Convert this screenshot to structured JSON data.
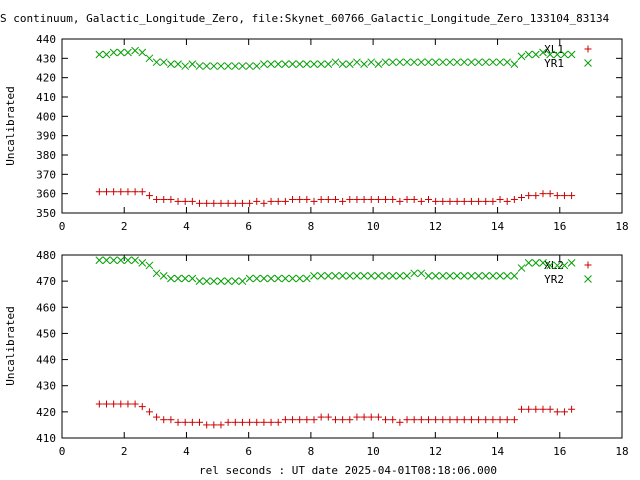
{
  "title": "S continuum, Galactic_Longitude_Zero, file:Skynet_60766_Galactic_Longitude_Zero_133104_83134",
  "chart_data": [
    {
      "type": "scatter",
      "xlim": [
        0,
        18
      ],
      "ylim": [
        350,
        440
      ],
      "xticks": [
        "0",
        "2",
        "4",
        "6",
        "8",
        "10",
        "12",
        "14",
        "16",
        "18"
      ],
      "yticks": [
        "350",
        "360",
        "370",
        "380",
        "390",
        "400",
        "410",
        "420",
        "430",
        "440"
      ],
      "ylabel": "Uncalibrated",
      "xlabel": "",
      "legend": "top-right",
      "series": [
        {
          "name": "XL1",
          "color": "#cc0000",
          "marker": "plus",
          "x": [
            1.2,
            1.43,
            1.66,
            1.89,
            2.12,
            2.35,
            2.58,
            2.81,
            3.04,
            3.27,
            3.5,
            3.73,
            3.96,
            4.19,
            4.42,
            4.65,
            4.88,
            5.11,
            5.34,
            5.57,
            5.8,
            6.03,
            6.26,
            6.49,
            6.72,
            6.95,
            7.18,
            7.41,
            7.64,
            7.87,
            8.1,
            8.33,
            8.56,
            8.79,
            9.02,
            9.25,
            9.48,
            9.71,
            9.94,
            10.17,
            10.4,
            10.63,
            10.86,
            11.09,
            11.32,
            11.55,
            11.78,
            12.01,
            12.24,
            12.47,
            12.7,
            12.93,
            13.16,
            13.39,
            13.62,
            13.85,
            14.08,
            14.31,
            14.54,
            14.77,
            15.0,
            15.23,
            15.46,
            15.69,
            15.92,
            16.15,
            16.38
          ],
          "y": [
            361,
            361,
            361,
            361,
            361,
            361,
            361,
            359,
            357,
            357,
            357,
            356,
            356,
            356,
            355,
            355,
            355,
            355,
            355,
            355,
            355,
            355,
            356,
            355,
            356,
            356,
            356,
            357,
            357,
            357,
            356,
            357,
            357,
            357,
            356,
            357,
            357,
            357,
            357,
            357,
            357,
            357,
            356,
            357,
            357,
            356,
            357,
            356,
            356,
            356,
            356,
            356,
            356,
            356,
            356,
            356,
            357,
            356,
            357,
            358,
            359,
            359,
            360,
            360,
            359,
            359,
            359
          ]
        },
        {
          "name": "YR1",
          "color": "#00a000",
          "marker": "cross",
          "x": [
            1.2,
            1.43,
            1.66,
            1.89,
            2.12,
            2.35,
            2.58,
            2.81,
            3.04,
            3.27,
            3.5,
            3.73,
            3.96,
            4.19,
            4.42,
            4.65,
            4.88,
            5.11,
            5.34,
            5.57,
            5.8,
            6.03,
            6.26,
            6.49,
            6.72,
            6.95,
            7.18,
            7.41,
            7.64,
            7.87,
            8.1,
            8.33,
            8.56,
            8.79,
            9.02,
            9.25,
            9.48,
            9.71,
            9.94,
            10.17,
            10.4,
            10.63,
            10.86,
            11.09,
            11.32,
            11.55,
            11.78,
            12.01,
            12.24,
            12.47,
            12.7,
            12.93,
            13.16,
            13.39,
            13.62,
            13.85,
            14.08,
            14.31,
            14.54,
            14.77,
            15.0,
            15.23,
            15.46,
            15.69,
            15.92,
            16.15,
            16.38
          ],
          "y": [
            432,
            432,
            433,
            433,
            433,
            434,
            433,
            430,
            428,
            428,
            427,
            427,
            426,
            427,
            426,
            426,
            426,
            426,
            426,
            426,
            426,
            426,
            426,
            427,
            427,
            427,
            427,
            427,
            427,
            427,
            427,
            427,
            427,
            428,
            427,
            427,
            428,
            427,
            428,
            427,
            428,
            428,
            428,
            428,
            428,
            428,
            428,
            428,
            428,
            428,
            428,
            428,
            428,
            428,
            428,
            428,
            428,
            428,
            427,
            431,
            432,
            432,
            433,
            432,
            432,
            432,
            432
          ]
        }
      ]
    },
    {
      "type": "scatter",
      "xlim": [
        0,
        18
      ],
      "ylim": [
        410,
        480
      ],
      "xticks": [
        "0",
        "2",
        "4",
        "6",
        "8",
        "10",
        "12",
        "14",
        "16",
        "18"
      ],
      "yticks": [
        "410",
        "420",
        "430",
        "440",
        "450",
        "460",
        "470",
        "480"
      ],
      "ylabel": "Uncalibrated",
      "xlabel": "rel seconds : UT date 2025-04-01T08:18:06.000",
      "legend": "top-right",
      "series": [
        {
          "name": "XL2",
          "color": "#cc0000",
          "marker": "plus",
          "x": [
            1.2,
            1.43,
            1.66,
            1.89,
            2.12,
            2.35,
            2.58,
            2.81,
            3.04,
            3.27,
            3.5,
            3.73,
            3.96,
            4.19,
            4.42,
            4.65,
            4.88,
            5.11,
            5.34,
            5.57,
            5.8,
            6.03,
            6.26,
            6.49,
            6.72,
            6.95,
            7.18,
            7.41,
            7.64,
            7.87,
            8.1,
            8.33,
            8.56,
            8.79,
            9.02,
            9.25,
            9.48,
            9.71,
            9.94,
            10.17,
            10.4,
            10.63,
            10.86,
            11.09,
            11.32,
            11.55,
            11.78,
            12.01,
            12.24,
            12.47,
            12.7,
            12.93,
            13.16,
            13.39,
            13.62,
            13.85,
            14.08,
            14.31,
            14.54,
            14.77,
            15.0,
            15.23,
            15.46,
            15.69,
            15.92,
            16.15,
            16.38
          ],
          "y": [
            423,
            423,
            423,
            423,
            423,
            423,
            422,
            420,
            418,
            417,
            417,
            416,
            416,
            416,
            416,
            415,
            415,
            415,
            416,
            416,
            416,
            416,
            416,
            416,
            416,
            416,
            417,
            417,
            417,
            417,
            417,
            418,
            418,
            417,
            417,
            417,
            418,
            418,
            418,
            418,
            417,
            417,
            416,
            417,
            417,
            417,
            417,
            417,
            417,
            417,
            417,
            417,
            417,
            417,
            417,
            417,
            417,
            417,
            417,
            421,
            421,
            421,
            421,
            421,
            420,
            420,
            421
          ]
        },
        {
          "name": "YR2",
          "color": "#00a000",
          "marker": "cross",
          "x": [
            1.2,
            1.43,
            1.66,
            1.89,
            2.12,
            2.35,
            2.58,
            2.81,
            3.04,
            3.27,
            3.5,
            3.73,
            3.96,
            4.19,
            4.42,
            4.65,
            4.88,
            5.11,
            5.34,
            5.57,
            5.8,
            6.03,
            6.26,
            6.49,
            6.72,
            6.95,
            7.18,
            7.41,
            7.64,
            7.87,
            8.1,
            8.33,
            8.56,
            8.79,
            9.02,
            9.25,
            9.48,
            9.71,
            9.94,
            10.17,
            10.4,
            10.63,
            10.86,
            11.09,
            11.32,
            11.55,
            11.78,
            12.01,
            12.24,
            12.47,
            12.7,
            12.93,
            13.16,
            13.39,
            13.62,
            13.85,
            14.08,
            14.31,
            14.54,
            14.77,
            15.0,
            15.23,
            15.46,
            15.69,
            15.92,
            16.15,
            16.38
          ],
          "y": [
            478,
            478,
            478,
            478,
            478,
            478,
            477,
            476,
            473,
            472,
            471,
            471,
            471,
            471,
            470,
            470,
            470,
            470,
            470,
            470,
            470,
            471,
            471,
            471,
            471,
            471,
            471,
            471,
            471,
            471,
            472,
            472,
            472,
            472,
            472,
            472,
            472,
            472,
            472,
            472,
            472,
            472,
            472,
            472,
            473,
            473,
            472,
            472,
            472,
            472,
            472,
            472,
            472,
            472,
            472,
            472,
            472,
            472,
            472,
            475,
            477,
            477,
            477,
            476,
            476,
            476,
            477
          ]
        }
      ]
    }
  ]
}
